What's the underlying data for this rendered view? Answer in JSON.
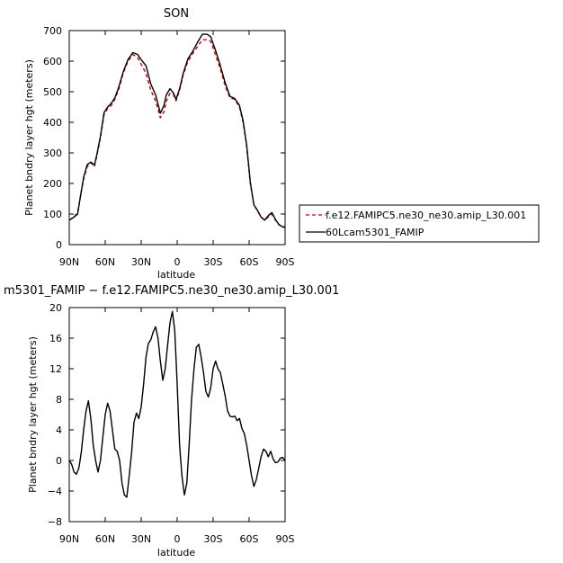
{
  "chart_data": [
    {
      "type": "line",
      "title": "SON",
      "xlabel": "latitude",
      "ylabel": "Planet bndry layer hgt (meters)",
      "xlim": [
        90,
        -90
      ],
      "ylim": [
        0,
        700
      ],
      "x_ticks": [
        90,
        60,
        30,
        0,
        -30,
        -60,
        -90
      ],
      "x_tick_labels": [
        "90N",
        "60N",
        "30N",
        "0",
        "30S",
        "60S",
        "90S"
      ],
      "y_ticks": [
        0,
        100,
        200,
        300,
        400,
        500,
        600,
        700
      ],
      "y_tick_labels": [
        "0",
        "100",
        "200",
        "300",
        "400",
        "500",
        "600",
        "700"
      ],
      "grid": false,
      "legend_position": "right",
      "series": [
        {
          "name": "f.e12.FAMIPC5.ne30_ne30.amip_L30.001",
          "color": "#cc0000",
          "dash": "dashed",
          "x": [
            90,
            86,
            83,
            81,
            78,
            75,
            72,
            69,
            67,
            64,
            61,
            58,
            55,
            52,
            49,
            45,
            41,
            37,
            33,
            30,
            26,
            22,
            18,
            14,
            11,
            9,
            6,
            3,
            1,
            -2,
            -5,
            -9,
            -13,
            -17,
            -21,
            -25,
            -28,
            -32,
            -36,
            -40,
            -44,
            -48,
            -52,
            -55,
            -58,
            -61,
            -64,
            -67,
            -70,
            -73,
            -76,
            -79,
            -82,
            -85,
            -88,
            -90
          ],
          "y": [
            80,
            90,
            105,
            150,
            215,
            255,
            268,
            255,
            290,
            350,
            425,
            445,
            455,
            475,
            505,
            560,
            600,
            622,
            612,
            590,
            560,
            505,
            470,
            415,
            435,
            470,
            495,
            490,
            470,
            505,
            555,
            600,
            625,
            648,
            670,
            670,
            665,
            620,
            575,
            520,
            480,
            475,
            450,
            400,
            320,
            200,
            130,
            110,
            90,
            80,
            90,
            100,
            80,
            65,
            60,
            58
          ]
        },
        {
          "name": "60Lcam5301_FAMIP",
          "color": "#000000",
          "dash": "solid",
          "x": [
            90,
            86,
            83,
            81,
            78,
            75,
            72,
            69,
            67,
            64,
            61,
            58,
            55,
            52,
            49,
            45,
            41,
            37,
            33,
            30,
            26,
            22,
            18,
            14,
            11,
            9,
            6,
            3,
            1,
            -2,
            -5,
            -9,
            -13,
            -17,
            -21,
            -25,
            -28,
            -32,
            -36,
            -40,
            -44,
            -48,
            -52,
            -55,
            -58,
            -61,
            -64,
            -67,
            -70,
            -73,
            -76,
            -79,
            -82,
            -85,
            -88,
            -90
          ],
          "y": [
            80,
            90,
            100,
            150,
            220,
            262,
            270,
            260,
            295,
            355,
            432,
            450,
            462,
            480,
            512,
            565,
            605,
            628,
            622,
            605,
            585,
            525,
            490,
            430,
            455,
            490,
            510,
            495,
            475,
            510,
            560,
            608,
            632,
            662,
            688,
            688,
            680,
            635,
            585,
            530,
            485,
            478,
            455,
            405,
            325,
            205,
            130,
            112,
            90,
            80,
            95,
            105,
            82,
            65,
            58,
            56
          ]
        }
      ]
    },
    {
      "type": "line",
      "title": "m5301_FAMIP − f.e12.FAMIPC5.ne30_ne30.amip_L30.001",
      "xlabel": "latitude",
      "ylabel": "Planet bndry layer hgt (meters)",
      "xlim": [
        90,
        -90
      ],
      "ylim": [
        -8,
        20
      ],
      "x_ticks": [
        90,
        60,
        30,
        0,
        -30,
        -60,
        -90
      ],
      "x_tick_labels": [
        "90N",
        "60N",
        "30N",
        "0",
        "30S",
        "60S",
        "90S"
      ],
      "y_ticks": [
        -8,
        -4,
        0,
        4,
        8,
        12,
        16,
        20
      ],
      "y_tick_labels": [
        "−8",
        "−4",
        "0",
        "4",
        "8",
        "12",
        "16",
        "20"
      ],
      "grid": false,
      "series": [
        {
          "color": "#000000",
          "x": [
            90,
            88,
            86,
            84,
            82,
            80,
            78,
            76,
            74,
            72,
            70,
            68,
            66,
            64,
            62,
            60,
            58,
            56,
            54,
            52,
            50,
            48,
            46,
            44,
            42,
            40,
            38,
            36,
            34,
            32,
            30,
            28,
            26,
            24,
            22,
            20,
            18,
            16,
            14,
            12,
            10,
            8,
            6,
            4,
            2,
            0,
            -2,
            -4,
            -6,
            -8,
            -10,
            -12,
            -14,
            -16,
            -18,
            -20,
            -22,
            -24,
            -26,
            -28,
            -30,
            -32,
            -34,
            -36,
            -38,
            -40,
            -42,
            -44,
            -46,
            -48,
            -50,
            -52,
            -54,
            -56,
            -58,
            -60,
            -62,
            -64,
            -66,
            -68,
            -70,
            -72,
            -74,
            -76,
            -78,
            -80,
            -82,
            -84,
            -86,
            -88,
            -90
          ],
          "y": [
            0,
            -0.5,
            -1.5,
            -1.8,
            -1,
            1,
            4,
            6.5,
            7.8,
            5.5,
            2,
            0,
            -1.5,
            0,
            3,
            6,
            7.5,
            6.5,
            4,
            1.5,
            1.2,
            0,
            -3,
            -4.5,
            -4.8,
            -2,
            1,
            5,
            6.2,
            5.5,
            7,
            10,
            13.5,
            15.3,
            15.8,
            16.8,
            17.5,
            16,
            13,
            10.5,
            12,
            15,
            18,
            19.5,
            17,
            10,
            2,
            -2,
            -4.5,
            -3,
            2,
            8,
            12,
            14.8,
            15.2,
            13.5,
            11.5,
            9,
            8.3,
            9.5,
            12,
            13,
            12,
            11.5,
            10,
            8.5,
            6.5,
            5.8,
            5.7,
            5.8,
            5.2,
            5.5,
            4.2,
            3.5,
            2,
            0,
            -2,
            -3.4,
            -2.5,
            -1,
            0.5,
            1.5,
            1.2,
            0.5,
            1.2,
            0.2,
            -0.3,
            -0.2,
            0.3,
            0.4,
            0
          ]
        }
      ]
    }
  ]
}
